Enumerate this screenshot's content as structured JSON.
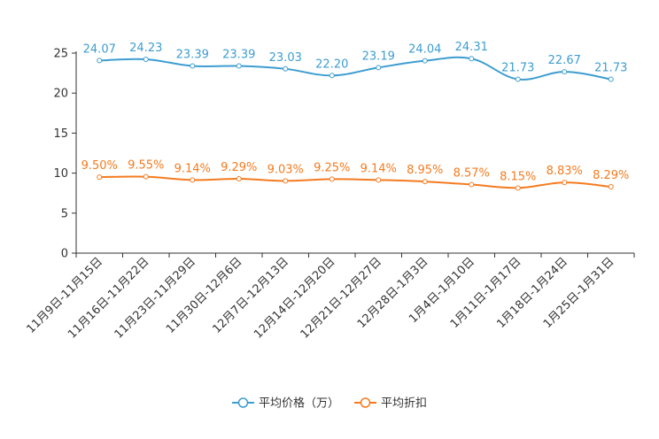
{
  "chart_data": {
    "type": "line",
    "title": "",
    "xlabel": "",
    "ylabel": "",
    "ylim": [
      0,
      25
    ],
    "yticks": [
      0,
      5,
      10,
      15,
      20,
      25
    ],
    "grid": false,
    "legend_position": "bottom-center",
    "categories": [
      "11月9日-11月15日",
      "11月16日-11月22日",
      "11月23日-11月29日",
      "11月30日-12月6日",
      "12月7日-12月13日",
      "12月14日-12月20日",
      "12月21日-12月27日",
      "12月28日-1月3日",
      "1月4日-1月10日",
      "1月11日-1月17日",
      "1月18日-1月24日",
      "1月25日-1月31日"
    ],
    "series": [
      {
        "name": "平均价格（万）",
        "color": "#3d9dd0",
        "values": [
          24.07,
          24.23,
          23.39,
          23.39,
          23.03,
          22.2,
          23.19,
          24.04,
          24.31,
          21.73,
          22.67,
          21.73
        ],
        "labels": [
          "24.07",
          "24.23",
          "23.39",
          "23.39",
          "23.03",
          "22.20",
          "23.19",
          "24.04",
          "24.31",
          "21.73",
          "22.67",
          "21.73"
        ]
      },
      {
        "name": "平均折扣",
        "color": "#f47b20",
        "values": [
          9.5,
          9.55,
          9.14,
          9.29,
          9.03,
          9.25,
          9.14,
          8.95,
          8.57,
          8.15,
          8.83,
          8.29
        ],
        "labels": [
          "9.50%",
          "9.55%",
          "9.14%",
          "9.29%",
          "9.03%",
          "9.25%",
          "9.14%",
          "8.95%",
          "8.57%",
          "8.15%",
          "8.83%",
          "8.29%"
        ]
      }
    ]
  }
}
